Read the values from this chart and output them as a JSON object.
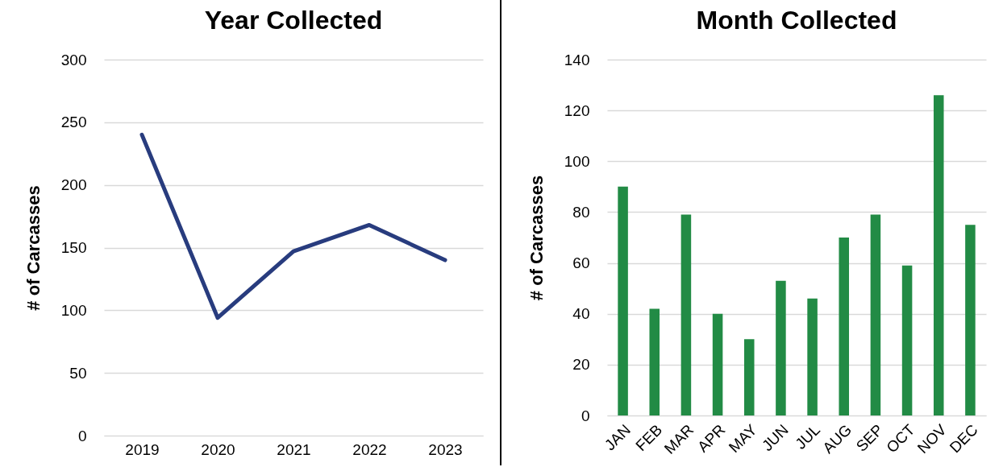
{
  "chart_data": [
    {
      "type": "line",
      "title": "Year Collected",
      "ylabel": "# of Carcasses",
      "categories": [
        "2019",
        "2020",
        "2021",
        "2022",
        "2023"
      ],
      "series": [
        {
          "color": "#283c7e",
          "values": [
            240,
            94,
            147,
            168,
            140
          ]
        }
      ],
      "ylim": [
        0,
        300
      ],
      "yticks": [
        0,
        50,
        100,
        150,
        200,
        250,
        300
      ],
      "grid": "y"
    },
    {
      "type": "bar",
      "title": "Month Collected",
      "ylabel": "# of Carcasses",
      "categories": [
        "JAN",
        "FEB",
        "MAR",
        "APR",
        "MAY",
        "JUN",
        "JUL",
        "AUG",
        "SEP",
        "OCT",
        "NOV",
        "DEC"
      ],
      "series": [
        {
          "color": "#228b45",
          "values": [
            90,
            42,
            79,
            40,
            30,
            53,
            46,
            70,
            79,
            59,
            126,
            75
          ]
        }
      ],
      "ylim": [
        0,
        140
      ],
      "yticks": [
        0,
        20,
        40,
        60,
        80,
        100,
        120,
        140
      ],
      "grid": "y"
    }
  ]
}
